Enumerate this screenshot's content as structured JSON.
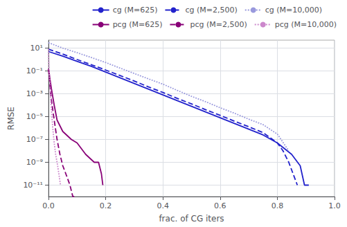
{
  "chart_data": {
    "type": "line",
    "xlabel": "frac. of CG iters",
    "ylabel": "RMSE",
    "log": "y",
    "grid": true,
    "legend": "upper right",
    "xlim": [
      0.0,
      1.0
    ],
    "ylim": [
      1e-12,
      50.0
    ],
    "xticks": [
      {
        "value": 0,
        "label": "0.0"
      },
      0.2,
      0.4,
      0.6,
      0.8,
      {
        "value": 1,
        "label": "1.0"
      }
    ],
    "yticks": [
      {
        "value": 10.0,
        "label": "10¹"
      },
      {
        "value": 0.1,
        "label": "10⁻¹"
      },
      {
        "value": 0.001,
        "label": "10⁻³"
      },
      {
        "value": 1e-05,
        "label": "10⁻⁵"
      },
      {
        "value": 1e-07,
        "label": "10⁻⁷"
      },
      {
        "value": 1e-09,
        "label": "10⁻⁹"
      },
      {
        "value": 1e-11,
        "label": "10⁻¹¹"
      }
    ],
    "series": [
      {
        "name": "cg (M=625)",
        "color": "#2222cc",
        "line_style": "solid",
        "x": [
          0.0,
          0.05,
          0.1,
          0.15,
          0.2,
          0.25,
          0.3,
          0.35,
          0.4,
          0.45,
          0.5,
          0.55,
          0.6,
          0.65,
          0.7,
          0.75,
          0.8,
          0.85,
          0.88,
          0.895,
          0.91
        ],
        "values": [
          5.0,
          2.0,
          0.7,
          0.25,
          0.08,
          0.025,
          0.008,
          0.0025,
          0.0008,
          0.00025,
          8e-05,
          2.5e-05,
          8e-06,
          2.5e-06,
          8e-07,
          2.5e-07,
          5e-08,
          5e-09,
          5e-10,
          1e-11,
          1e-11
        ]
      },
      {
        "name": "cg (M=2,500)",
        "color": "#2222cc",
        "line_style": "dashed",
        "x": [
          0.0,
          0.05,
          0.1,
          0.15,
          0.2,
          0.25,
          0.3,
          0.35,
          0.4,
          0.45,
          0.5,
          0.55,
          0.6,
          0.65,
          0.7,
          0.75,
          0.8,
          0.82,
          0.84,
          0.855,
          0.87
        ],
        "values": [
          8.0,
          3.0,
          1.0,
          0.35,
          0.12,
          0.04,
          0.013,
          0.004,
          0.0013,
          0.0004,
          0.00013,
          4e-05,
          1.3e-05,
          4e-06,
          1.3e-06,
          4e-07,
          5e-08,
          1e-08,
          1e-09,
          1e-10,
          1e-11
        ]
      },
      {
        "name": "cg (M=10,000)",
        "color": "#9999dd",
        "line_style": "dotted",
        "x": [
          0.0,
          0.05,
          0.1,
          0.15,
          0.2,
          0.25,
          0.3,
          0.35,
          0.4,
          0.45,
          0.5,
          0.55,
          0.6,
          0.65,
          0.7,
          0.75,
          0.8,
          0.84
        ],
        "values": [
          30.0,
          10.0,
          4.0,
          1.5,
          0.55,
          0.18,
          0.06,
          0.02,
          0.007,
          0.002,
          0.0006,
          0.0002,
          6e-05,
          2e-05,
          6e-06,
          2e-06,
          3e-07,
          1e-08
        ]
      },
      {
        "name": "pcg (M=625)",
        "color": "#880077",
        "line_style": "solid",
        "x": [
          0.0,
          0.002,
          0.005,
          0.01,
          0.02,
          0.03,
          0.05,
          0.08,
          0.1,
          0.13,
          0.16,
          0.175,
          0.185,
          0.19
        ],
        "values": [
          0.15,
          0.08,
          0.02,
          0.003,
          0.0001,
          5e-06,
          5e-07,
          1e-07,
          5e-08,
          5e-09,
          1e-09,
          1e-09,
          1e-10,
          1e-11
        ]
      },
      {
        "name": "pcg (M=2,500)",
        "color": "#880077",
        "line_style": "dashed",
        "x": [
          0.0,
          0.002,
          0.005,
          0.01,
          0.02,
          0.03,
          0.04,
          0.05,
          0.065,
          0.075,
          0.085,
          0.09
        ],
        "values": [
          0.15,
          0.05,
          0.005,
          0.0003,
          5e-06,
          1e-07,
          5e-09,
          5e-10,
          5e-11,
          1e-11,
          1e-12,
          1e-12
        ]
      },
      {
        "name": "pcg (M=10,000)",
        "color": "#cc88cc",
        "line_style": "dotted",
        "x": [
          0.0,
          0.001,
          0.003,
          0.006,
          0.01,
          0.015,
          0.02,
          0.025,
          0.032,
          0.038,
          0.042
        ],
        "values": [
          8.0,
          1.0,
          0.05,
          0.002,
          5e-05,
          1e-06,
          5e-08,
          5e-09,
          5e-10,
          5e-11,
          1e-11
        ]
      }
    ]
  }
}
